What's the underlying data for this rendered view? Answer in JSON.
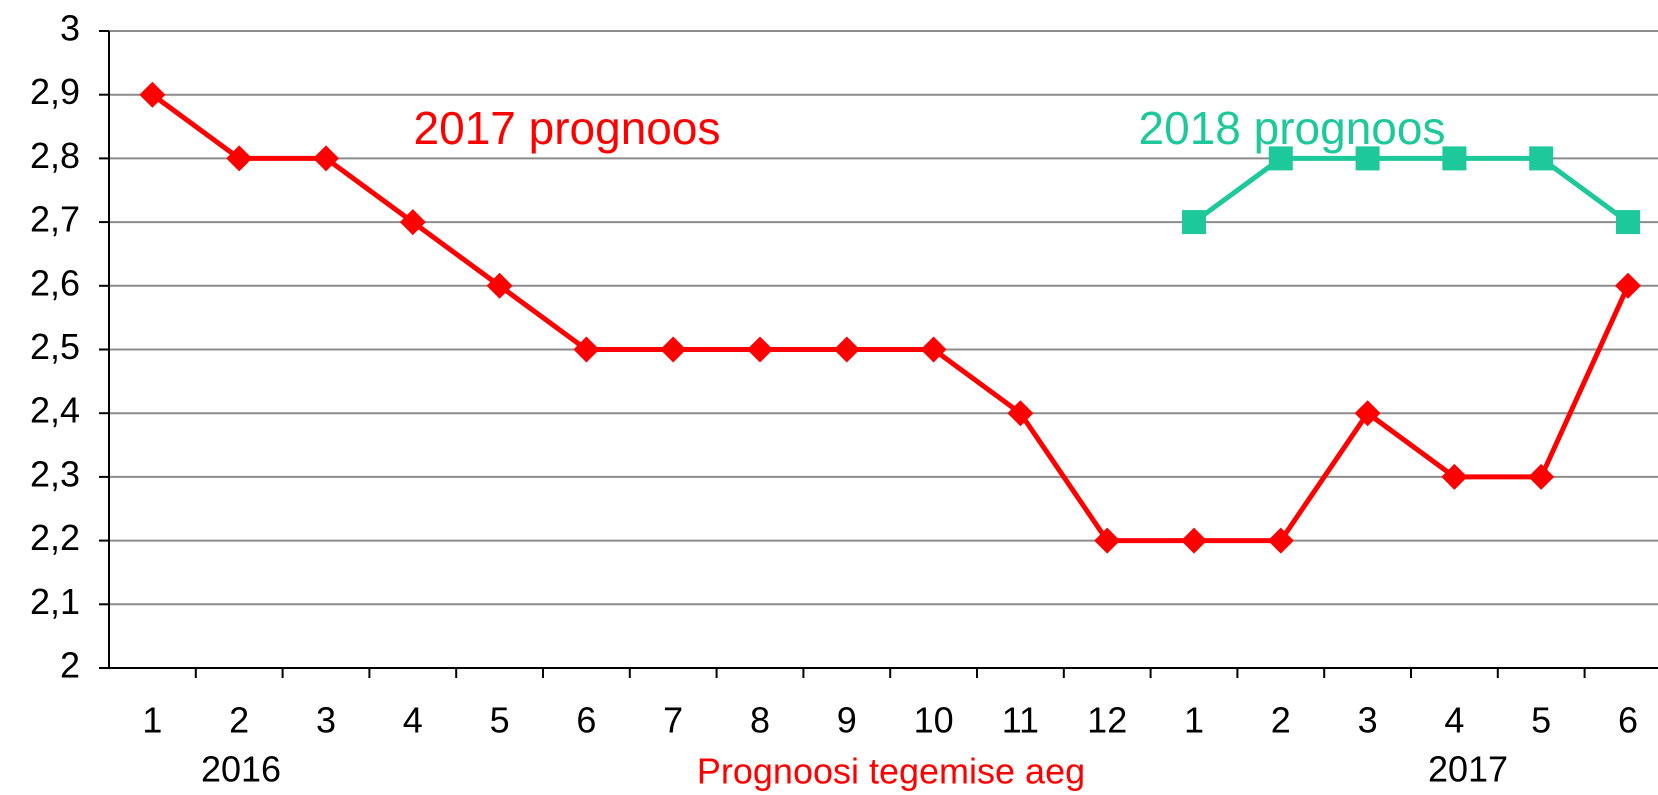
{
  "chart_data": {
    "type": "line",
    "x_title": "Prognoosi tegemise aeg",
    "categories": [
      "1",
      "2",
      "3",
      "4",
      "5",
      "6",
      "7",
      "8",
      "9",
      "10",
      "11",
      "12",
      "1",
      "2",
      "3",
      "4",
      "5",
      "6"
    ],
    "year_labels": [
      "2016",
      "2017"
    ],
    "series": [
      {
        "name": "2017 prognoos",
        "color": "#ff0000",
        "marker": "diamond",
        "values": [
          2.9,
          2.8,
          2.8,
          2.7,
          2.6,
          2.5,
          2.5,
          2.5,
          2.5,
          2.5,
          2.4,
          2.2,
          2.2,
          2.2,
          2.4,
          2.3,
          2.3,
          2.6
        ]
      },
      {
        "name": "2018 prognoos",
        "color": "#1dc89a",
        "marker": "square",
        "values": [
          null,
          null,
          null,
          null,
          null,
          null,
          null,
          null,
          null,
          null,
          null,
          null,
          2.7,
          2.8,
          2.8,
          2.8,
          2.8,
          2.7
        ]
      }
    ],
    "ylim": [
      2,
      3
    ],
    "yticks": [
      2,
      {
        "value": 2.1,
        "label": "2,1"
      },
      {
        "value": 2.2,
        "label": "2,2"
      },
      {
        "value": 2.3,
        "label": "2,3"
      },
      {
        "value": 2.4,
        "label": "2,4"
      },
      {
        "value": 2.5,
        "label": "2,5"
      },
      {
        "value": 2.6,
        "label": "2,6"
      },
      {
        "value": 2.7,
        "label": "2,7"
      },
      {
        "value": 2.8,
        "label": "2,8"
      },
      {
        "value": 2.9,
        "label": "2,9"
      },
      3
    ],
    "grid": true
  }
}
